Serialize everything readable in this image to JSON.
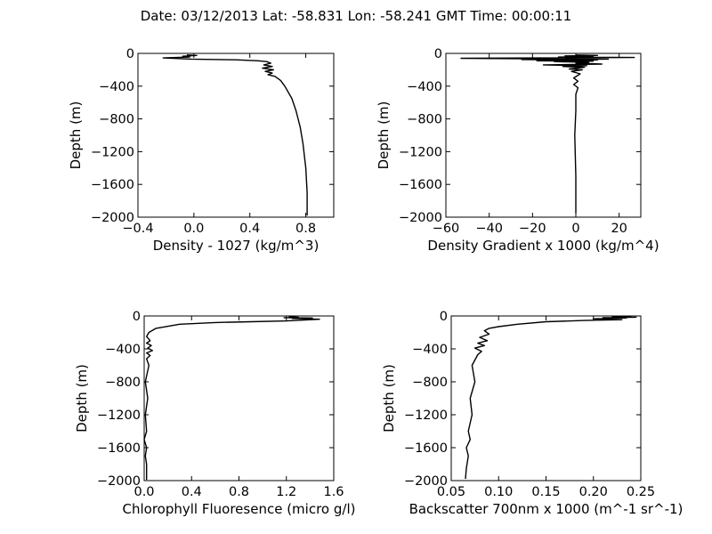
{
  "figure": {
    "title": "Date: 03/12/2013  Lat:  -58.831 Lon:  -58.241  GMT Time: 00:00:11"
  },
  "chart_data": [
    {
      "type": "line",
      "xlabel": "Density - 1027 (kg/m^3)",
      "ylabel": "Depth (m)",
      "xlim": [
        -0.4,
        1.0
      ],
      "ylim": [
        -2000,
        0
      ],
      "xticks": [
        -0.4,
        0.0,
        0.4,
        0.8
      ],
      "xtick_labels": [
        "−0.4",
        "0.0",
        "0.4",
        "0.8"
      ],
      "yticks": [
        0,
        -400,
        -800,
        -1200,
        -1600,
        -2000
      ],
      "ytick_labels": [
        "0",
        "−400",
        "−800",
        "−1200",
        "−1600",
        "−2000"
      ],
      "grid": false,
      "x": [
        -0.05,
        0.02,
        -0.08,
        -0.03,
        -0.22,
        -0.02,
        0.3,
        0.46,
        0.52,
        0.55,
        0.5,
        0.56,
        0.49,
        0.57,
        0.51,
        0.56,
        0.53,
        0.58,
        0.62,
        0.65,
        0.7,
        0.73,
        0.76,
        0.78,
        0.8,
        0.81,
        0.81
      ],
      "y": [
        -20,
        -25,
        -35,
        -45,
        -55,
        -70,
        -78,
        -90,
        -100,
        -120,
        -140,
        -160,
        -180,
        -200,
        -220,
        -240,
        -260,
        -280,
        -330,
        -400,
        -550,
        -700,
        -900,
        -1100,
        -1400,
        -1700,
        -1980
      ]
    },
    {
      "type": "line",
      "xlabel": "Density Gradient x 1000 (kg/m^4)",
      "ylabel": "Depth (m)",
      "xlim": [
        -60,
        30
      ],
      "ylim": [
        -2000,
        0
      ],
      "xticks": [
        -60,
        -40,
        -20,
        0,
        20
      ],
      "xtick_labels": [
        "−60",
        "−40",
        "−20",
        "0",
        "20"
      ],
      "yticks": [
        0,
        -400,
        -800,
        -1200,
        -1600,
        -2000
      ],
      "ytick_labels": [
        "0",
        "−400",
        "−800",
        "−1200",
        "−1600",
        "−2000"
      ],
      "grid": false,
      "x": [
        0,
        10,
        -5,
        8,
        -8,
        27,
        -53,
        -20,
        15,
        -25,
        10,
        -18,
        8,
        -10,
        6,
        0,
        12,
        -15,
        5,
        -6,
        4,
        -3,
        3,
        -2,
        2,
        -1,
        1,
        -1,
        1,
        0,
        0,
        -0.5,
        0,
        0
      ],
      "y": [
        -20,
        -25,
        -30,
        -40,
        -45,
        -50,
        -60,
        -65,
        -70,
        -75,
        -80,
        -90,
        -95,
        -100,
        -110,
        -120,
        -130,
        -140,
        -150,
        -160,
        -170,
        -190,
        -200,
        -220,
        -250,
        -300,
        -340,
        -380,
        -420,
        -500,
        -700,
        -1000,
        -1500,
        -1950
      ]
    },
    {
      "type": "line",
      "xlabel": "Chlorophyll Fluoresence (micro g/l)",
      "ylabel": "Depth (m)",
      "xlim": [
        0.0,
        1.6
      ],
      "ylim": [
        -2000,
        0
      ],
      "xticks": [
        0.0,
        0.4,
        0.8,
        1.2,
        1.6
      ],
      "xtick_labels": [
        "0.0",
        "0.4",
        "0.8",
        "1.2",
        "1.6"
      ],
      "yticks": [
        0,
        -400,
        -800,
        -1200,
        -1600,
        -2000
      ],
      "ytick_labels": [
        "0",
        "−400",
        "−800",
        "−1200",
        "−1600",
        "−2000"
      ],
      "grid": false,
      "x": [
        1.22,
        1.3,
        1.18,
        1.42,
        1.25,
        1.48,
        1.35,
        1.2,
        0.9,
        0.6,
        0.3,
        0.1,
        0.04,
        0.02,
        0.05,
        0.02,
        0.06,
        0.03,
        0.07,
        0.02,
        0.05,
        0.02,
        0.04,
        0.01,
        0.03,
        0.01,
        0.02,
        0.0,
        0.02,
        0.01,
        0.02,
        0.02
      ],
      "y": [
        -10,
        -15,
        -20,
        -25,
        -30,
        -40,
        -50,
        -60,
        -70,
        -80,
        -100,
        -150,
        -200,
        -250,
        -300,
        -330,
        -360,
        -390,
        -420,
        -450,
        -480,
        -520,
        -600,
        -800,
        -1000,
        -1200,
        -1400,
        -1500,
        -1600,
        -1700,
        -1800,
        -1990
      ]
    },
    {
      "type": "line",
      "xlabel": "Backscatter 700nm x 1000 (m^-1 sr^-1)",
      "ylabel": "Depth (m)",
      "xlim": [
        0.05,
        0.25
      ],
      "ylim": [
        -2000,
        0
      ],
      "xticks": [
        0.05,
        0.1,
        0.15,
        0.2,
        0.25
      ],
      "xtick_labels": [
        "0.05",
        "0.10",
        "0.15",
        "0.20",
        "0.25"
      ],
      "yticks": [
        0,
        -400,
        -800,
        -1200,
        -1600,
        -2000
      ],
      "ytick_labels": [
        "0",
        "−400",
        "−800",
        "−1200",
        "−1600",
        "−2000"
      ],
      "grid": false,
      "x": [
        0.24,
        0.22,
        0.245,
        0.21,
        0.235,
        0.2,
        0.23,
        0.19,
        0.15,
        0.12,
        0.1,
        0.09,
        0.085,
        0.09,
        0.08,
        0.088,
        0.078,
        0.085,
        0.075,
        0.082,
        0.078,
        0.072,
        0.075,
        0.07,
        0.072,
        0.068,
        0.07,
        0.066,
        0.068,
        0.066,
        0.065
      ],
      "y": [
        -5,
        -10,
        -15,
        -20,
        -25,
        -35,
        -45,
        -55,
        -70,
        -100,
        -130,
        -150,
        -180,
        -220,
        -260,
        -300,
        -330,
        -360,
        -390,
        -430,
        -470,
        -600,
        -800,
        -1000,
        -1200,
        -1400,
        -1500,
        -1600,
        -1700,
        -1850,
        -1980
      ]
    }
  ]
}
